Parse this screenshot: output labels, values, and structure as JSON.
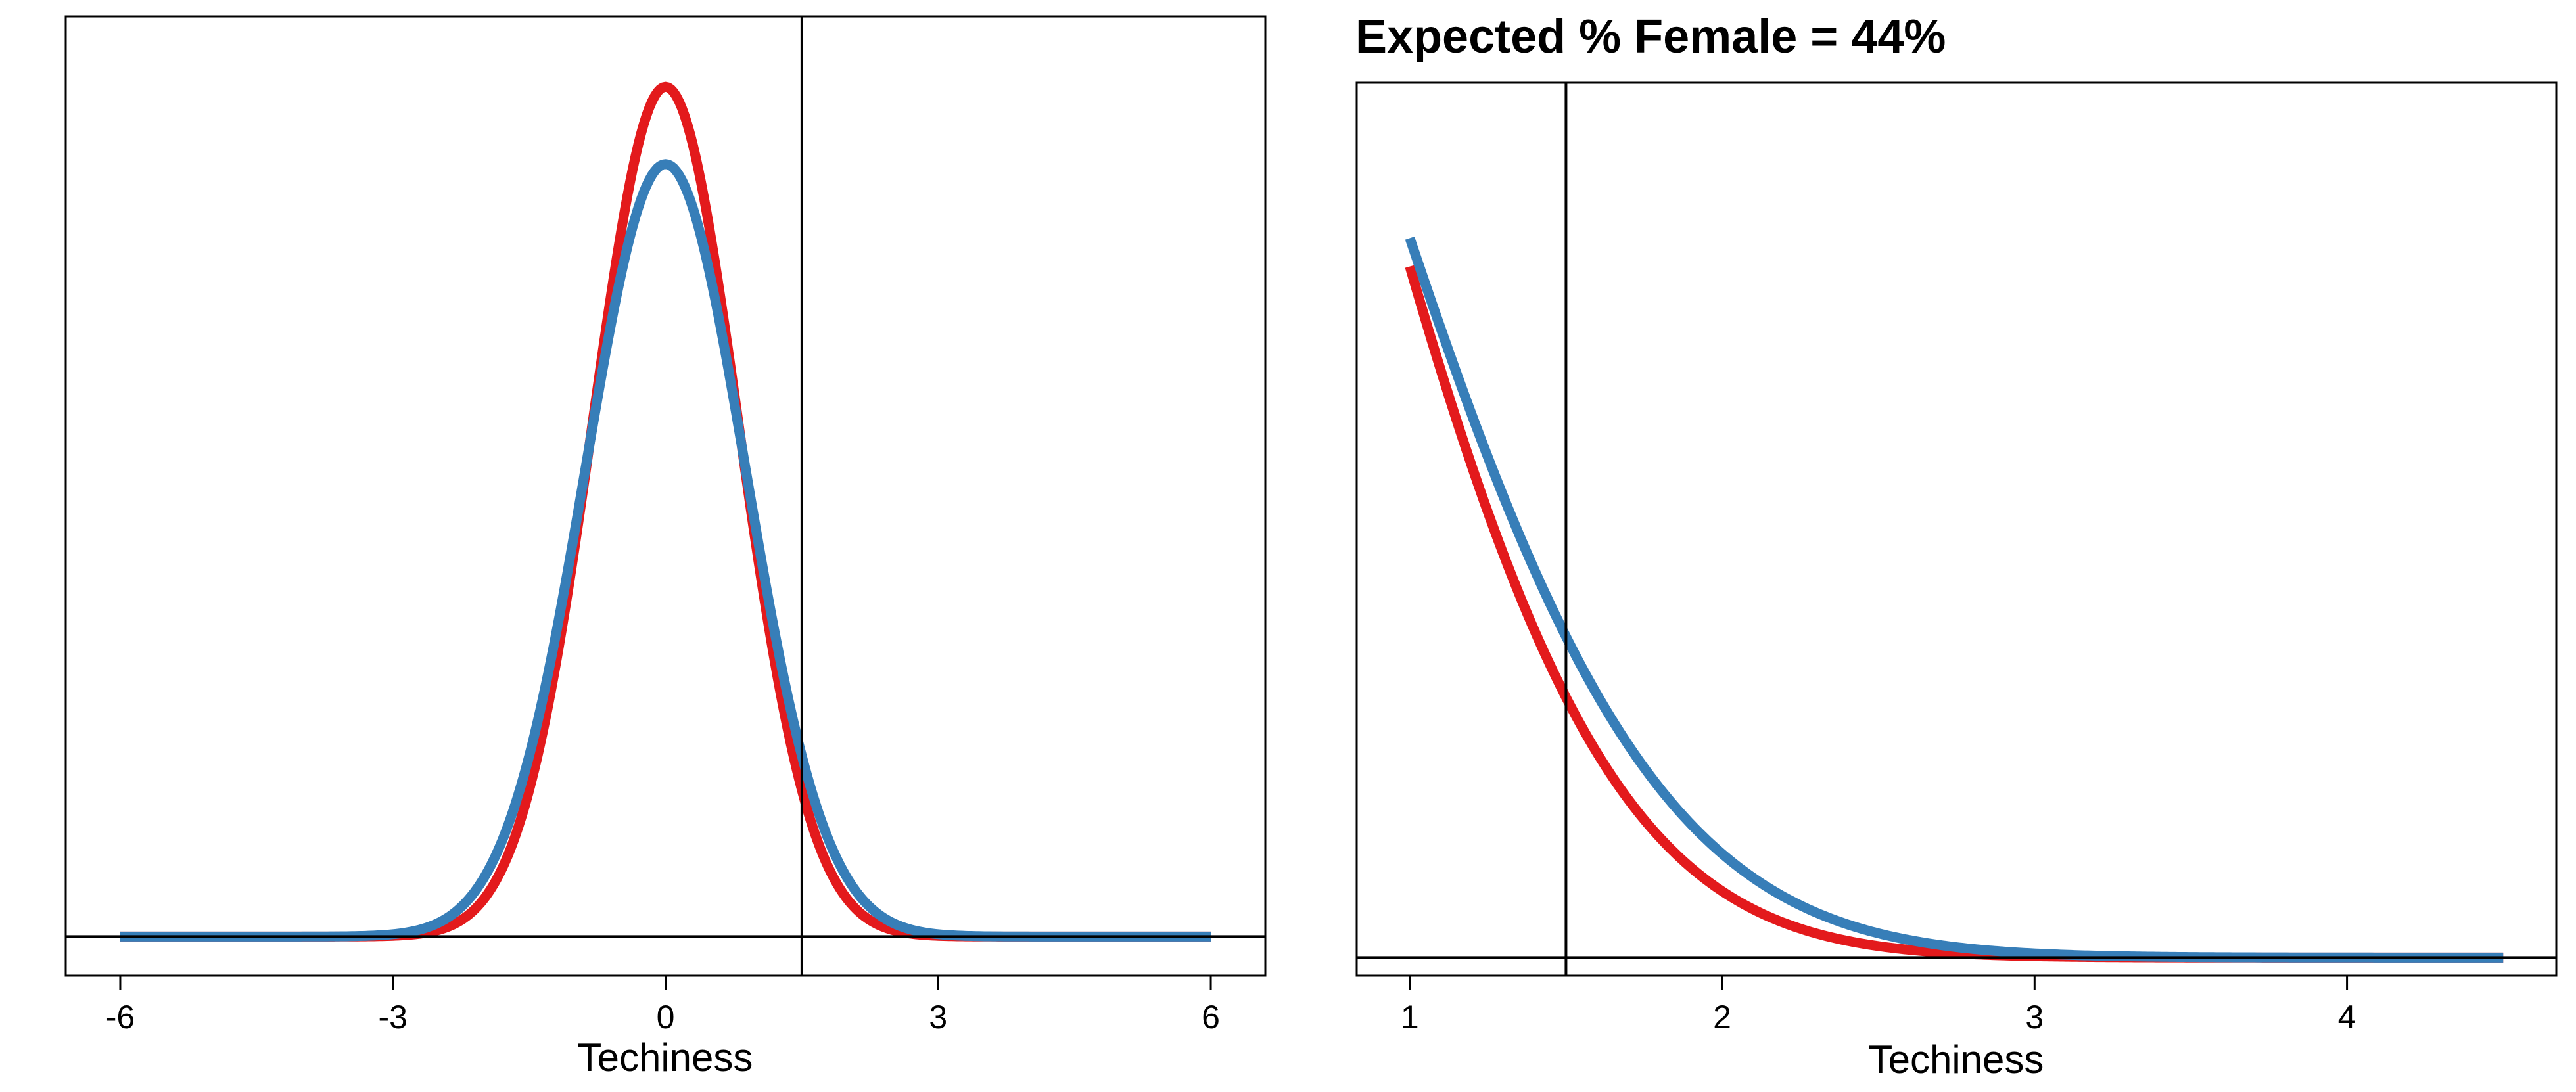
{
  "chart_data": [
    {
      "type": "line",
      "title": "",
      "xlabel": "Techiness",
      "ylabel": "",
      "xlim": [
        -6.6,
        6.6
      ],
      "ylim": [
        -0.023,
        0.54
      ],
      "xticks": [
        -6,
        -3,
        0,
        3,
        6
      ],
      "tick_labels": [
        "-6",
        "-3",
        "0",
        "3",
        "6"
      ],
      "vline": 1.5,
      "hline": 0,
      "grid": false,
      "legend": "none",
      "series": [
        {
          "mean": 0,
          "sd": 0.8,
          "color": "#e31a1c",
          "x_range": [
            -6,
            6
          ]
        },
        {
          "mean": 0,
          "sd": 0.88,
          "color": "#377eb8",
          "x_range": [
            -6,
            6
          ]
        }
      ]
    },
    {
      "type": "line",
      "title": "Expected % Female = 44%",
      "xlabel": "Techiness",
      "ylabel": "",
      "xlim": [
        0.83,
        4.67
      ],
      "ylim": [
        -0.006,
        0.289
      ],
      "xticks": [
        1,
        2,
        3,
        4
      ],
      "tick_labels": [
        "1",
        "2",
        "3",
        "4"
      ],
      "vline": 1.5,
      "hline": 0,
      "grid": false,
      "legend": "none",
      "series": [
        {
          "mean": 0,
          "sd": 0.8,
          "color": "#e31a1c",
          "x_range": [
            1,
            4.5
          ]
        },
        {
          "mean": 0,
          "sd": 0.88,
          "color": "#377eb8",
          "x_range": [
            1,
            4.5
          ]
        }
      ]
    }
  ]
}
